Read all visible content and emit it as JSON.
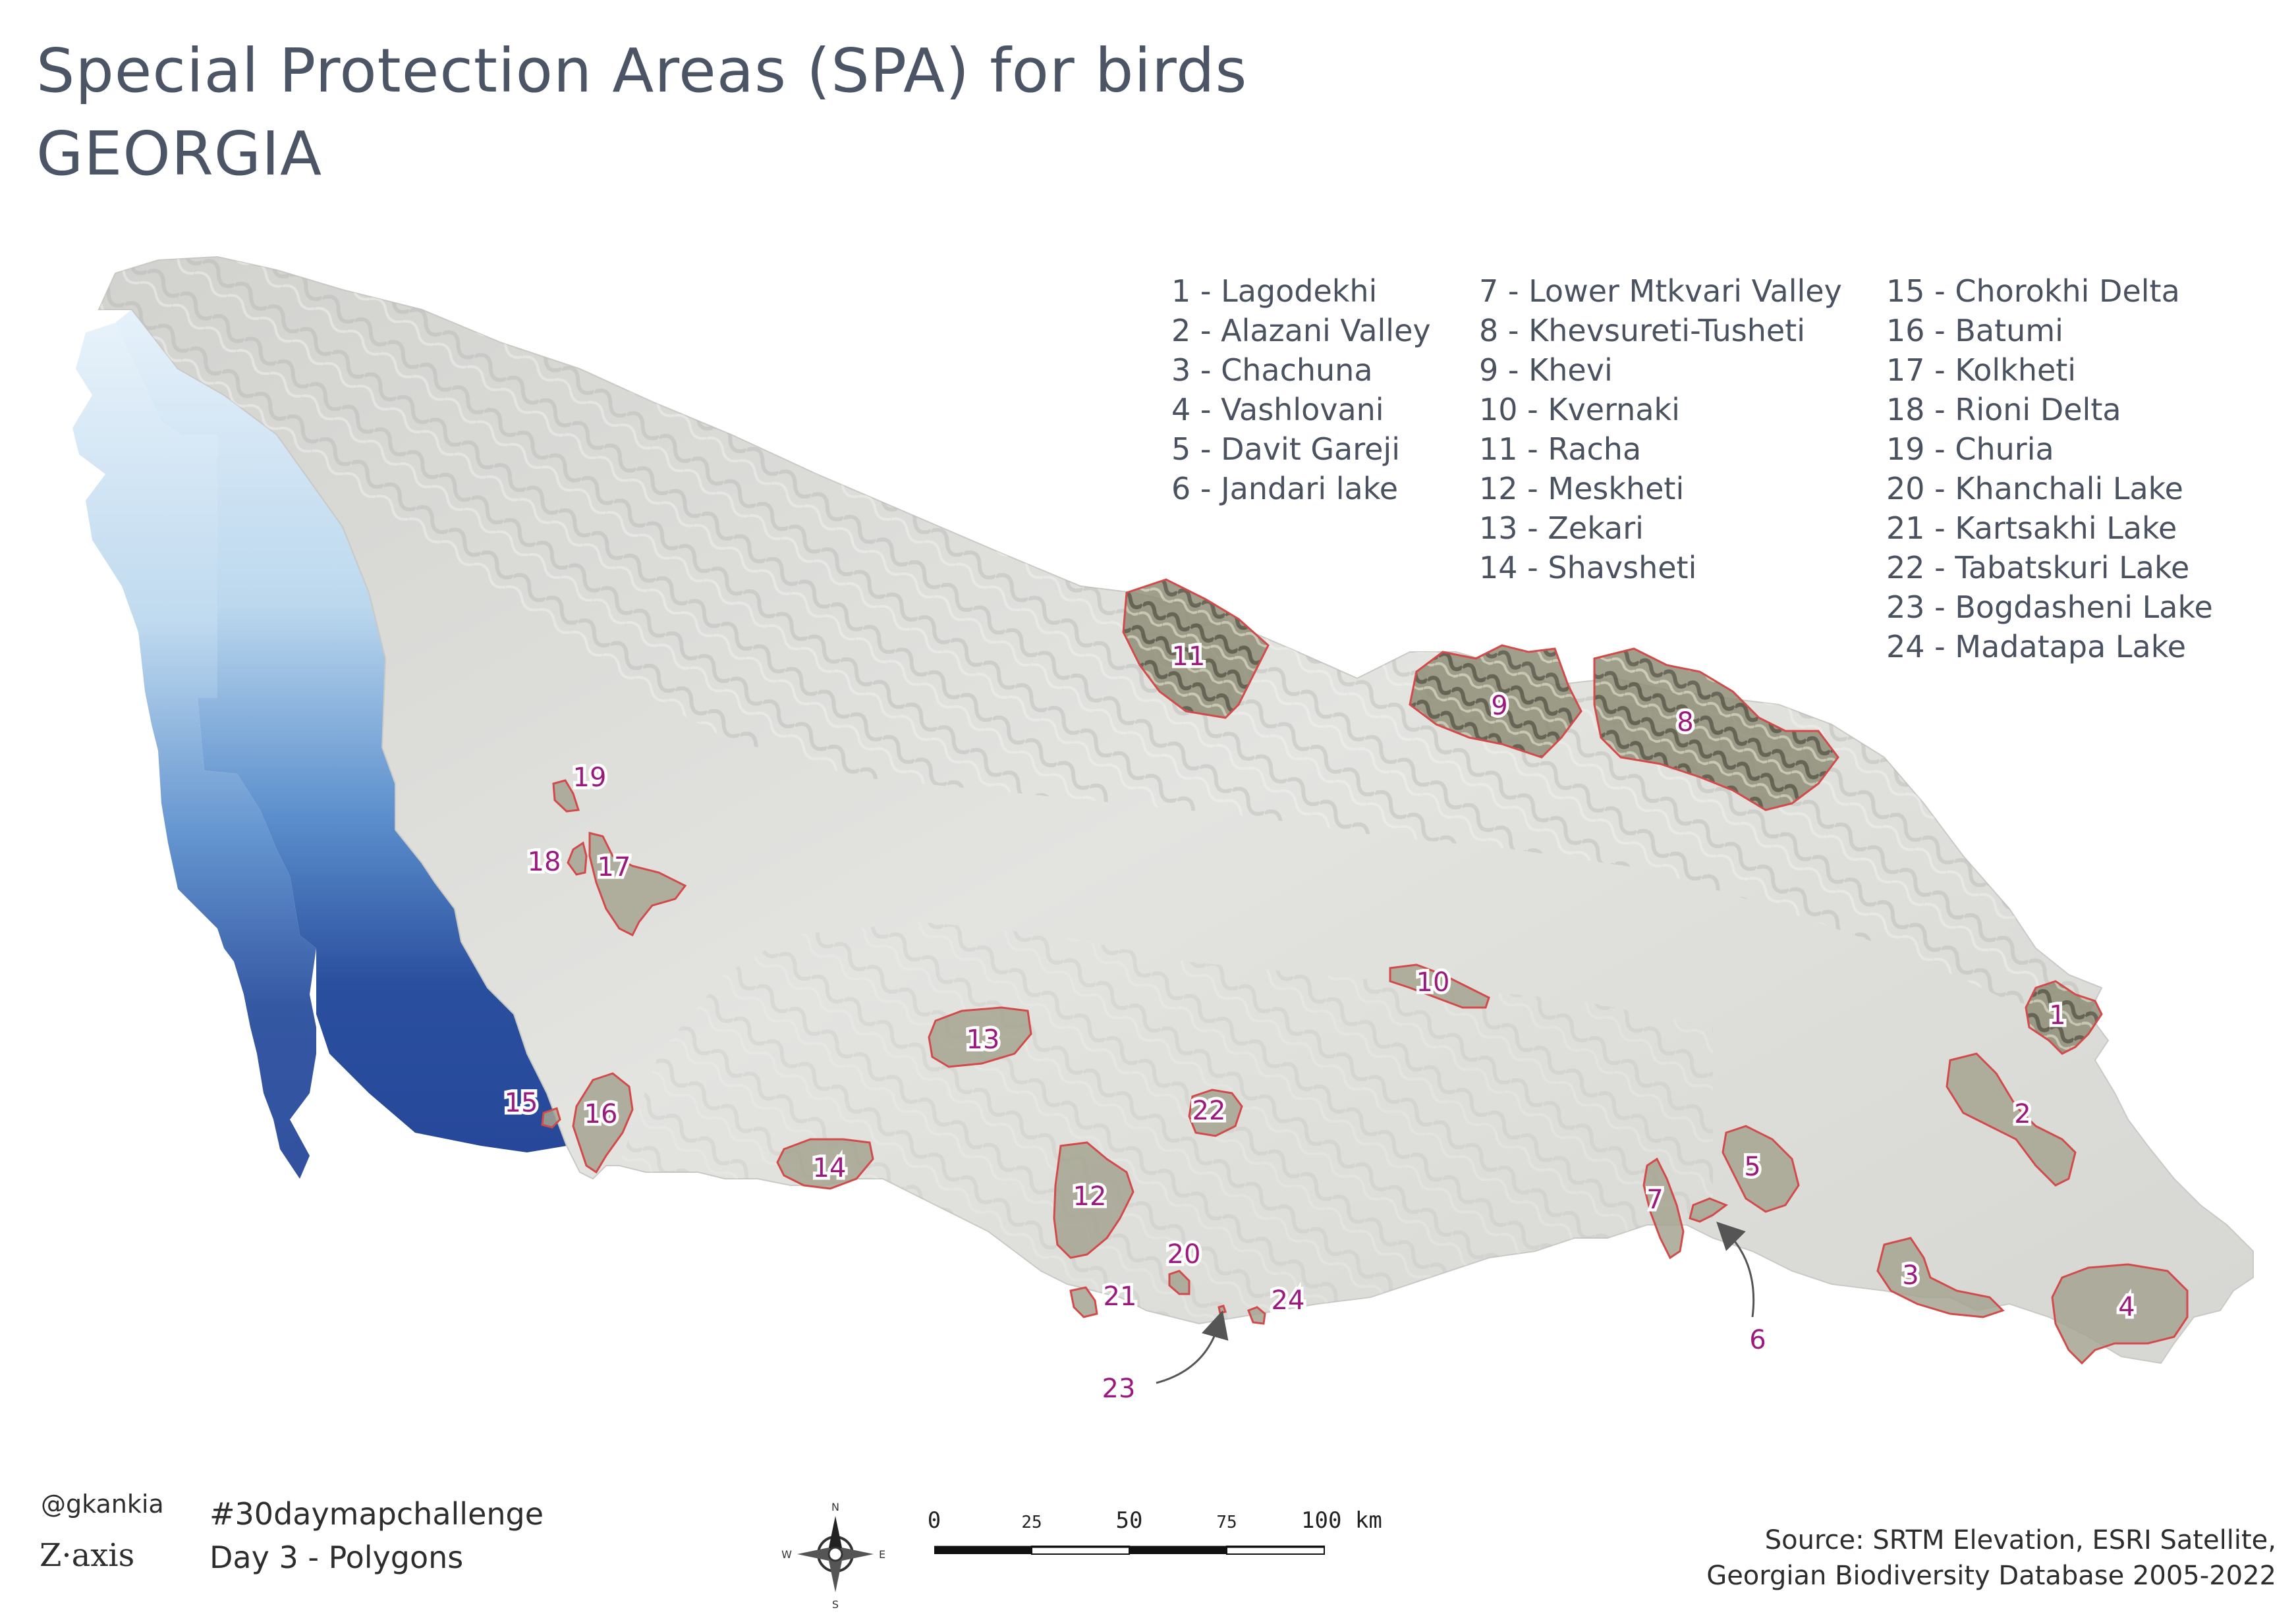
{
  "title": {
    "line1": "Special Protection Areas (SPA) for birds",
    "line2": "GEORGIA"
  },
  "legend": {
    "col1": [
      "1 - Lagodekhi",
      "2 - Alazani Valley",
      "3 - Chachuna",
      "4 - Vashlovani",
      "5 - Davit Gareji",
      "6 - Jandari lake"
    ],
    "col2": [
      "7 - Lower Mtkvari Valley",
      "8 - Khevsureti-Tusheti",
      "9 - Khevi",
      "10 - Kvernaki",
      "11 - Racha",
      "12 - Meskheti",
      "13 - Zekari",
      "14 - Shavsheti"
    ],
    "col3": [
      "15 - Chorokhi Delta",
      "16 - Batumi",
      "17 - Kolkheti",
      "18 - Rioni Delta",
      "19 - Churia",
      "20 - Khanchali Lake",
      "21 - Kartsakhi Lake",
      "22 - Tabatskuri Lake",
      "23 - Bogdasheni Lake",
      "24 - Madatapa Lake"
    ]
  },
  "spa_labels": {
    "l1": "1",
    "l2": "2",
    "l3": "3",
    "l4": "4",
    "l5": "5",
    "l6": "6",
    "l7": "7",
    "l8": "8",
    "l9": "9",
    "l10": "10",
    "l11": "11",
    "l12": "12",
    "l13": "13",
    "l14": "14",
    "l15": "15",
    "l16": "16",
    "l17": "17",
    "l18": "18",
    "l19": "19",
    "l20": "20",
    "l21": "21",
    "l22": "22",
    "l23": "23",
    "l24": "24"
  },
  "compass": {
    "n": "N",
    "s": "S",
    "e": "E",
    "w": "W"
  },
  "scale": {
    "t0": "0",
    "t25": "25",
    "t50": "50",
    "t75": "75",
    "t100": "100 km"
  },
  "footer": {
    "author": "@gkankia",
    "logo": "Z·axis",
    "challenge": "#30daymapchallenge",
    "day": "Day 3 - Polygons",
    "source_line1": "Source: SRTM Elevation, ESRI Satellite,",
    "source_line2": "Georgian Biodiversity Database 2005-2022"
  },
  "colors": {
    "land": "#dcdcd8",
    "sea_light": "#cfe3f2",
    "sea_dark": "#1f3f8f",
    "spa_fill": "#9d9c86",
    "spa_stroke": "#d24a4a",
    "label": "#9a1a7f"
  }
}
